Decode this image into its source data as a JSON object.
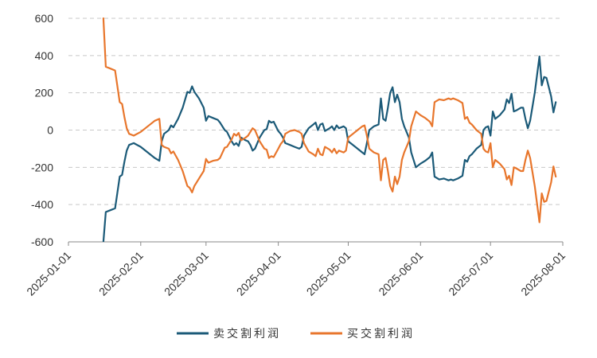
{
  "chart_data": {
    "type": "line",
    "title": "",
    "xlabel": "",
    "ylabel": "",
    "xlim": [
      "2025-01-01",
      "2025-08-01"
    ],
    "ylim": [
      -600,
      600
    ],
    "grid": true,
    "legend_position": "bottom",
    "x_ticks": [
      "2025-01-01",
      "2025-02-01",
      "2025-03-01",
      "2025-04-01",
      "2025-05-01",
      "2025-06-01",
      "2025-07-01",
      "2025-08-01"
    ],
    "y_ticks": [
      600,
      400,
      200,
      0,
      -200,
      -400,
      -600
    ],
    "x_tick_labels": [
      "2025-01-01",
      "2025-02-01",
      "2025-03-01",
      "2025-04-01",
      "2025-05-01",
      "2025-06-01",
      "2025-07-01",
      "2025-08-01"
    ],
    "y_tick_labels": [
      "600",
      "400",
      "200",
      "0",
      "-200",
      "-400",
      "-600"
    ],
    "series": [
      {
        "name": "卖交割利润",
        "color": "#1b5a78",
        "points": [
          [
            "2025-01-16",
            -610
          ],
          [
            "2025-01-17",
            -440
          ],
          [
            "2025-01-19",
            -430
          ],
          [
            "2025-01-21",
            -420
          ],
          [
            "2025-01-23",
            -250
          ],
          [
            "2025-01-24",
            -240
          ],
          [
            "2025-01-25",
            -170
          ],
          [
            "2025-01-26",
            -110
          ],
          [
            "2025-01-27",
            -80
          ],
          [
            "2025-01-29",
            -70
          ],
          [
            "2025-02-01",
            -90
          ],
          [
            "2025-02-04",
            -120
          ],
          [
            "2025-02-07",
            -150
          ],
          [
            "2025-02-09",
            -165
          ],
          [
            "2025-02-10",
            -60
          ],
          [
            "2025-02-11",
            -20
          ],
          [
            "2025-02-13",
            0
          ],
          [
            "2025-02-14",
            25
          ],
          [
            "2025-02-15",
            15
          ],
          [
            "2025-02-17",
            60
          ],
          [
            "2025-02-19",
            120
          ],
          [
            "2025-02-21",
            205
          ],
          [
            "2025-02-22",
            200
          ],
          [
            "2025-02-23",
            235
          ],
          [
            "2025-02-24",
            205
          ],
          [
            "2025-02-26",
            170
          ],
          [
            "2025-02-28",
            120
          ],
          [
            "2025-03-01",
            50
          ],
          [
            "2025-03-02",
            75
          ],
          [
            "2025-03-04",
            65
          ],
          [
            "2025-03-06",
            55
          ],
          [
            "2025-03-07",
            40
          ],
          [
            "2025-03-09",
            0
          ],
          [
            "2025-03-10",
            -10
          ],
          [
            "2025-03-12",
            -60
          ],
          [
            "2025-03-13",
            -80
          ],
          [
            "2025-03-14",
            -70
          ],
          [
            "2025-03-15",
            -85
          ],
          [
            "2025-03-16",
            -40
          ],
          [
            "2025-03-18",
            -55
          ],
          [
            "2025-03-19",
            -60
          ],
          [
            "2025-03-20",
            -80
          ],
          [
            "2025-03-21",
            -110
          ],
          [
            "2025-03-22",
            -100
          ],
          [
            "2025-03-24",
            -40
          ],
          [
            "2025-03-26",
            0
          ],
          [
            "2025-03-27",
            5
          ],
          [
            "2025-03-28",
            50
          ],
          [
            "2025-03-29",
            40
          ],
          [
            "2025-03-30",
            45
          ],
          [
            "2025-04-01",
            -5
          ],
          [
            "2025-04-02",
            -20
          ],
          [
            "2025-04-03",
            -40
          ],
          [
            "2025-04-04",
            -70
          ],
          [
            "2025-04-06",
            -80
          ],
          [
            "2025-04-08",
            -90
          ],
          [
            "2025-04-10",
            -100
          ],
          [
            "2025-04-11",
            -90
          ],
          [
            "2025-04-12",
            -30
          ],
          [
            "2025-04-14",
            10
          ],
          [
            "2025-04-16",
            30
          ],
          [
            "2025-04-17",
            40
          ],
          [
            "2025-04-18",
            0
          ],
          [
            "2025-04-19",
            30
          ],
          [
            "2025-04-20",
            35
          ],
          [
            "2025-04-21",
            -5
          ],
          [
            "2025-04-23",
            10
          ],
          [
            "2025-04-24",
            20
          ],
          [
            "2025-04-25",
            0
          ],
          [
            "2025-04-26",
            25
          ],
          [
            "2025-04-27",
            10
          ],
          [
            "2025-04-29",
            20
          ],
          [
            "2025-04-30",
            10
          ],
          [
            "2025-05-01",
            -60
          ],
          [
            "2025-05-03",
            -80
          ],
          [
            "2025-05-05",
            -100
          ],
          [
            "2025-05-07",
            -120
          ],
          [
            "2025-05-08",
            -130
          ],
          [
            "2025-05-09",
            -70
          ],
          [
            "2025-05-10",
            0
          ],
          [
            "2025-05-12",
            20
          ],
          [
            "2025-05-14",
            30
          ],
          [
            "2025-05-15",
            170
          ],
          [
            "2025-05-16",
            60
          ],
          [
            "2025-05-17",
            50
          ],
          [
            "2025-05-18",
            120
          ],
          [
            "2025-05-19",
            200
          ],
          [
            "2025-05-20",
            230
          ],
          [
            "2025-05-21",
            150
          ],
          [
            "2025-05-22",
            190
          ],
          [
            "2025-05-23",
            150
          ],
          [
            "2025-05-24",
            60
          ],
          [
            "2025-05-25",
            20
          ],
          [
            "2025-05-27",
            -40
          ],
          [
            "2025-05-28",
            -120
          ],
          [
            "2025-05-30",
            -200
          ],
          [
            "2025-06-01",
            -180
          ],
          [
            "2025-06-03",
            -165
          ],
          [
            "2025-06-05",
            -145
          ],
          [
            "2025-06-06",
            -120
          ],
          [
            "2025-06-07",
            -250
          ],
          [
            "2025-06-09",
            -265
          ],
          [
            "2025-06-11",
            -260
          ],
          [
            "2025-06-13",
            -270
          ],
          [
            "2025-06-14",
            -265
          ],
          [
            "2025-06-15",
            -270
          ],
          [
            "2025-06-17",
            -260
          ],
          [
            "2025-06-19",
            -245
          ],
          [
            "2025-06-20",
            -160
          ],
          [
            "2025-06-21",
            -170
          ],
          [
            "2025-06-22",
            -140
          ],
          [
            "2025-06-23",
            -130
          ],
          [
            "2025-06-25",
            -100
          ],
          [
            "2025-06-27",
            -80
          ],
          [
            "2025-06-28",
            0
          ],
          [
            "2025-06-29",
            15
          ],
          [
            "2025-06-30",
            20
          ],
          [
            "2025-07-01",
            -30
          ],
          [
            "2025-07-02",
            100
          ],
          [
            "2025-07-03",
            60
          ],
          [
            "2025-07-05",
            80
          ],
          [
            "2025-07-07",
            110
          ],
          [
            "2025-07-08",
            165
          ],
          [
            "2025-07-09",
            145
          ],
          [
            "2025-07-10",
            195
          ],
          [
            "2025-07-11",
            100
          ],
          [
            "2025-07-12",
            105
          ],
          [
            "2025-07-14",
            120
          ],
          [
            "2025-07-15",
            120
          ],
          [
            "2025-07-16",
            60
          ],
          [
            "2025-07-17",
            10
          ],
          [
            "2025-07-18",
            50
          ],
          [
            "2025-07-20",
            200
          ],
          [
            "2025-07-22",
            395
          ],
          [
            "2025-07-23",
            240
          ],
          [
            "2025-07-24",
            285
          ],
          [
            "2025-07-25",
            280
          ],
          [
            "2025-07-27",
            180
          ],
          [
            "2025-07-28",
            95
          ],
          [
            "2025-07-29",
            150
          ]
        ]
      },
      {
        "name": "买交割利润",
        "color": "#e8762c",
        "points": [
          [
            "2025-01-16",
            610
          ],
          [
            "2025-01-17",
            340
          ],
          [
            "2025-01-19",
            330
          ],
          [
            "2025-01-21",
            320
          ],
          [
            "2025-01-23",
            150
          ],
          [
            "2025-01-24",
            140
          ],
          [
            "2025-01-25",
            70
          ],
          [
            "2025-01-26",
            10
          ],
          [
            "2025-01-27",
            -20
          ],
          [
            "2025-01-29",
            -30
          ],
          [
            "2025-02-01",
            -10
          ],
          [
            "2025-02-04",
            20
          ],
          [
            "2025-02-07",
            50
          ],
          [
            "2025-02-09",
            60
          ],
          [
            "2025-02-10",
            -80
          ],
          [
            "2025-02-11",
            -90
          ],
          [
            "2025-02-13",
            -100
          ],
          [
            "2025-02-14",
            -125
          ],
          [
            "2025-02-15",
            -115
          ],
          [
            "2025-02-17",
            -160
          ],
          [
            "2025-02-19",
            -220
          ],
          [
            "2025-02-21",
            -300
          ],
          [
            "2025-02-22",
            -310
          ],
          [
            "2025-02-23",
            -335
          ],
          [
            "2025-02-24",
            -300
          ],
          [
            "2025-02-26",
            -260
          ],
          [
            "2025-02-28",
            -220
          ],
          [
            "2025-03-01",
            -155
          ],
          [
            "2025-03-02",
            -175
          ],
          [
            "2025-03-04",
            -165
          ],
          [
            "2025-03-06",
            -160
          ],
          [
            "2025-03-07",
            -150
          ],
          [
            "2025-03-09",
            -95
          ],
          [
            "2025-03-10",
            -90
          ],
          [
            "2025-03-12",
            -50
          ],
          [
            "2025-03-13",
            -20
          ],
          [
            "2025-03-14",
            -30
          ],
          [
            "2025-03-15",
            -15
          ],
          [
            "2025-03-16",
            -55
          ],
          [
            "2025-03-18",
            -40
          ],
          [
            "2025-03-19",
            -30
          ],
          [
            "2025-03-20",
            -10
          ],
          [
            "2025-03-21",
            10
          ],
          [
            "2025-03-22",
            0
          ],
          [
            "2025-03-24",
            -60
          ],
          [
            "2025-03-26",
            -100
          ],
          [
            "2025-03-27",
            -105
          ],
          [
            "2025-03-28",
            -150
          ],
          [
            "2025-03-29",
            -140
          ],
          [
            "2025-03-30",
            -145
          ],
          [
            "2025-04-01",
            -100
          ],
          [
            "2025-04-02",
            -75
          ],
          [
            "2025-04-03",
            -60
          ],
          [
            "2025-04-04",
            -20
          ],
          [
            "2025-04-06",
            -5
          ],
          [
            "2025-04-08",
            0
          ],
          [
            "2025-04-10",
            -10
          ],
          [
            "2025-04-11",
            -20
          ],
          [
            "2025-04-12",
            -70
          ],
          [
            "2025-04-14",
            -115
          ],
          [
            "2025-04-16",
            -130
          ],
          [
            "2025-04-17",
            -140
          ],
          [
            "2025-04-18",
            -100
          ],
          [
            "2025-04-19",
            -130
          ],
          [
            "2025-04-20",
            -135
          ],
          [
            "2025-04-21",
            -90
          ],
          [
            "2025-04-23",
            -105
          ],
          [
            "2025-04-24",
            -120
          ],
          [
            "2025-04-25",
            -100
          ],
          [
            "2025-04-26",
            -125
          ],
          [
            "2025-04-27",
            -110
          ],
          [
            "2025-04-29",
            -120
          ],
          [
            "2025-04-30",
            -110
          ],
          [
            "2025-05-01",
            -40
          ],
          [
            "2025-05-03",
            -20
          ],
          [
            "2025-05-05",
            0
          ],
          [
            "2025-05-07",
            20
          ],
          [
            "2025-05-08",
            25
          ],
          [
            "2025-05-09",
            -30
          ],
          [
            "2025-05-10",
            -100
          ],
          [
            "2025-05-12",
            -120
          ],
          [
            "2025-05-14",
            -130
          ],
          [
            "2025-05-15",
            -270
          ],
          [
            "2025-05-16",
            -160
          ],
          [
            "2025-05-17",
            -150
          ],
          [
            "2025-05-18",
            -220
          ],
          [
            "2025-05-19",
            -300
          ],
          [
            "2025-05-20",
            -330
          ],
          [
            "2025-05-21",
            -250
          ],
          [
            "2025-05-22",
            -290
          ],
          [
            "2025-05-23",
            -250
          ],
          [
            "2025-05-24",
            -160
          ],
          [
            "2025-05-25",
            -120
          ],
          [
            "2025-05-27",
            -60
          ],
          [
            "2025-05-28",
            20
          ],
          [
            "2025-05-30",
            100
          ],
          [
            "2025-06-01",
            80
          ],
          [
            "2025-06-03",
            65
          ],
          [
            "2025-06-05",
            45
          ],
          [
            "2025-06-06",
            20
          ],
          [
            "2025-06-07",
            150
          ],
          [
            "2025-06-09",
            165
          ],
          [
            "2025-06-11",
            160
          ],
          [
            "2025-06-13",
            170
          ],
          [
            "2025-06-14",
            165
          ],
          [
            "2025-06-15",
            170
          ],
          [
            "2025-06-17",
            160
          ],
          [
            "2025-06-19",
            145
          ],
          [
            "2025-06-20",
            60
          ],
          [
            "2025-06-21",
            70
          ],
          [
            "2025-06-22",
            40
          ],
          [
            "2025-06-23",
            30
          ],
          [
            "2025-06-25",
            0
          ],
          [
            "2025-06-27",
            -20
          ],
          [
            "2025-06-28",
            -100
          ],
          [
            "2025-06-29",
            -115
          ],
          [
            "2025-06-30",
            -120
          ],
          [
            "2025-07-01",
            -70
          ],
          [
            "2025-07-02",
            -200
          ],
          [
            "2025-07-03",
            -160
          ],
          [
            "2025-07-05",
            -180
          ],
          [
            "2025-07-07",
            -210
          ],
          [
            "2025-07-08",
            -265
          ],
          [
            "2025-07-09",
            -245
          ],
          [
            "2025-07-10",
            -295
          ],
          [
            "2025-07-11",
            -200
          ],
          [
            "2025-07-12",
            -205
          ],
          [
            "2025-07-14",
            -220
          ],
          [
            "2025-07-15",
            -220
          ],
          [
            "2025-07-16",
            -160
          ],
          [
            "2025-07-17",
            -110
          ],
          [
            "2025-07-18",
            -150
          ],
          [
            "2025-07-20",
            -300
          ],
          [
            "2025-07-22",
            -495
          ],
          [
            "2025-07-23",
            -340
          ],
          [
            "2025-07-24",
            -385
          ],
          [
            "2025-07-25",
            -380
          ],
          [
            "2025-07-27",
            -280
          ],
          [
            "2025-07-28",
            -195
          ],
          [
            "2025-07-29",
            -250
          ]
        ]
      }
    ]
  }
}
